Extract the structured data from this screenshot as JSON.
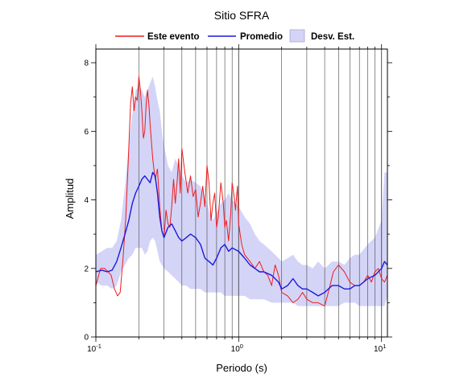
{
  "chart_data": {
    "type": "line",
    "title": "Sitio SFRA",
    "xlabel": "Periodo (s)",
    "ylabel": "Amplitud",
    "x_scale": "log",
    "xlim": [
      0.1,
      11
    ],
    "ylim": [
      0,
      8.4
    ],
    "grid": "vertical",
    "legend_position": "top",
    "x_ticks": [
      {
        "value": 0.1,
        "base": "10",
        "exp": "-1"
      },
      {
        "value": 1,
        "base": "10",
        "exp": "0"
      },
      {
        "value": 10,
        "base": "10",
        "exp": "1"
      }
    ],
    "y_ticks": [
      0,
      2,
      4,
      6,
      8
    ],
    "legend": [
      {
        "key": "event",
        "label": "Este evento"
      },
      {
        "key": "mean",
        "label": "Promedio"
      },
      {
        "key": "std",
        "label": "Desv. Est."
      }
    ],
    "colors": {
      "event": "#ee1c1c",
      "mean": "#1a1adf",
      "std": "#d4d4f7"
    },
    "series": [
      {
        "name": "Este evento",
        "x": [
          0.1,
          0.108,
          0.115,
          0.122,
          0.128,
          0.135,
          0.142,
          0.148,
          0.155,
          0.162,
          0.168,
          0.175,
          0.18,
          0.185,
          0.19,
          0.195,
          0.2,
          0.205,
          0.21,
          0.215,
          0.22,
          0.225,
          0.23,
          0.235,
          0.24,
          0.25,
          0.26,
          0.27,
          0.28,
          0.29,
          0.3,
          0.31,
          0.32,
          0.33,
          0.34,
          0.35,
          0.36,
          0.37,
          0.38,
          0.39,
          0.4,
          0.42,
          0.44,
          0.46,
          0.48,
          0.5,
          0.52,
          0.54,
          0.56,
          0.58,
          0.6,
          0.62,
          0.64,
          0.66,
          0.68,
          0.7,
          0.72,
          0.75,
          0.78,
          0.8,
          0.82,
          0.85,
          0.88,
          0.9,
          0.93,
          0.95,
          0.98,
          1.0,
          1.05,
          1.1,
          1.2,
          1.3,
          1.4,
          1.5,
          1.6,
          1.7,
          1.8,
          1.9,
          2.0,
          2.2,
          2.4,
          2.6,
          2.8,
          3.0,
          3.3,
          3.6,
          4.0,
          4.3,
          4.6,
          5.0,
          5.5,
          6.0,
          6.5,
          7.0,
          7.5,
          8.0,
          8.5,
          9.0,
          9.5,
          10.0,
          10.5,
          11.0
        ],
        "values": [
          1.5,
          2.0,
          2.0,
          1.9,
          1.8,
          1.4,
          1.2,
          1.3,
          2.3,
          3.5,
          5.0,
          6.8,
          7.3,
          6.6,
          7.0,
          6.9,
          7.6,
          7.2,
          6.6,
          5.8,
          6.0,
          6.8,
          7.2,
          6.8,
          6.2,
          5.2,
          4.6,
          4.9,
          3.8,
          3.1,
          2.9,
          3.7,
          3.3,
          3.2,
          3.8,
          4.6,
          3.9,
          4.5,
          5.2,
          4.2,
          5.5,
          4.8,
          4.2,
          4.7,
          4.1,
          4.3,
          3.5,
          3.9,
          4.4,
          3.8,
          5.0,
          4.5,
          3.4,
          3.9,
          4.2,
          3.2,
          3.5,
          4.5,
          3.9,
          3.2,
          3.4,
          2.8,
          3.6,
          4.5,
          4.1,
          3.7,
          4.4,
          3.3,
          2.7,
          2.4,
          2.2,
          2.0,
          2.2,
          1.9,
          1.8,
          1.5,
          2.1,
          1.8,
          1.3,
          1.2,
          1.0,
          1.1,
          1.3,
          1.1,
          1.0,
          1.0,
          0.9,
          1.4,
          1.9,
          2.1,
          1.9,
          1.6,
          1.5,
          1.5,
          1.6,
          1.8,
          1.6,
          1.9,
          2.0,
          1.7,
          1.6,
          1.8
        ]
      },
      {
        "name": "Promedio",
        "x": [
          0.1,
          0.11,
          0.12,
          0.13,
          0.14,
          0.15,
          0.16,
          0.17,
          0.18,
          0.19,
          0.2,
          0.21,
          0.22,
          0.23,
          0.24,
          0.25,
          0.26,
          0.27,
          0.28,
          0.29,
          0.3,
          0.32,
          0.34,
          0.36,
          0.38,
          0.4,
          0.43,
          0.46,
          0.5,
          0.54,
          0.58,
          0.62,
          0.66,
          0.7,
          0.75,
          0.8,
          0.85,
          0.9,
          1.0,
          1.1,
          1.2,
          1.3,
          1.4,
          1.5,
          1.7,
          1.9,
          2.0,
          2.2,
          2.4,
          2.6,
          2.8,
          3.0,
          3.3,
          3.6,
          4.0,
          4.5,
          5.0,
          5.5,
          6.0,
          6.5,
          7.0,
          8.0,
          9.0,
          10.0,
          10.5,
          11.0
        ],
        "values": [
          1.9,
          1.95,
          1.9,
          1.95,
          2.2,
          2.6,
          3.0,
          3.4,
          3.9,
          4.2,
          4.4,
          4.6,
          4.7,
          4.6,
          4.5,
          4.8,
          4.7,
          4.2,
          3.5,
          3.1,
          2.9,
          3.2,
          3.3,
          3.1,
          2.9,
          2.8,
          2.9,
          3.0,
          2.9,
          2.7,
          2.3,
          2.2,
          2.1,
          2.3,
          2.6,
          2.7,
          2.5,
          2.6,
          2.5,
          2.3,
          2.1,
          2.0,
          1.9,
          1.9,
          1.8,
          1.6,
          1.4,
          1.5,
          1.7,
          1.5,
          1.4,
          1.4,
          1.3,
          1.2,
          1.3,
          1.5,
          1.5,
          1.4,
          1.4,
          1.5,
          1.5,
          1.7,
          1.8,
          2.0,
          2.2,
          2.1
        ]
      }
    ],
    "std_band": {
      "name": "Desv. Est.",
      "x": [
        0.1,
        0.11,
        0.12,
        0.13,
        0.14,
        0.15,
        0.16,
        0.17,
        0.18,
        0.19,
        0.2,
        0.21,
        0.22,
        0.23,
        0.24,
        0.25,
        0.26,
        0.27,
        0.28,
        0.29,
        0.3,
        0.32,
        0.34,
        0.36,
        0.38,
        0.4,
        0.43,
        0.46,
        0.5,
        0.54,
        0.58,
        0.62,
        0.66,
        0.7,
        0.75,
        0.8,
        0.85,
        0.9,
        1.0,
        1.1,
        1.2,
        1.3,
        1.4,
        1.5,
        1.7,
        1.9,
        2.0,
        2.2,
        2.4,
        2.6,
        2.8,
        3.0,
        3.3,
        3.6,
        4.0,
        4.5,
        5.0,
        5.5,
        6.0,
        6.5,
        7.0,
        8.0,
        9.0,
        10.0,
        10.5,
        11.0
      ],
      "upper": [
        2.4,
        2.5,
        2.6,
        2.6,
        2.8,
        3.4,
        4.4,
        5.6,
        6.5,
        7.2,
        7.3,
        7.2,
        7.0,
        7.2,
        7.4,
        7.6,
        7.3,
        6.9,
        6.6,
        6.0,
        5.6,
        5.0,
        4.8,
        5.2,
        5.0,
        4.7,
        4.5,
        4.6,
        4.5,
        4.4,
        4.1,
        3.7,
        3.4,
        3.6,
        3.9,
        4.0,
        4.2,
        4.0,
        3.8,
        3.5,
        3.3,
        3.0,
        2.8,
        2.7,
        2.5,
        2.3,
        2.2,
        2.3,
        2.4,
        2.2,
        2.1,
        2.1,
        2.0,
        2.2,
        2.0,
        2.2,
        2.2,
        2.1,
        2.3,
        2.4,
        2.4,
        2.7,
        2.9,
        3.4,
        4.8,
        4.8
      ],
      "lower": [
        1.6,
        1.5,
        1.5,
        1.4,
        1.5,
        1.9,
        2.1,
        2.3,
        2.4,
        2.6,
        2.6,
        2.6,
        2.4,
        2.5,
        2.8,
        2.9,
        2.8,
        2.5,
        2.2,
        2.1,
        2.0,
        1.9,
        1.8,
        1.7,
        1.6,
        1.5,
        1.5,
        1.4,
        1.4,
        1.4,
        1.3,
        1.3,
        1.3,
        1.3,
        1.3,
        1.2,
        1.2,
        1.2,
        1.2,
        1.2,
        1.1,
        1.1,
        1.1,
        1.1,
        1.0,
        1.0,
        1.0,
        1.0,
        1.0,
        0.9,
        0.9,
        0.9,
        0.9,
        0.9,
        0.9,
        0.9,
        0.9,
        1.0,
        1.0,
        1.0,
        0.9,
        0.9,
        0.9,
        0.9,
        0.9,
        1.2
      ]
    }
  }
}
